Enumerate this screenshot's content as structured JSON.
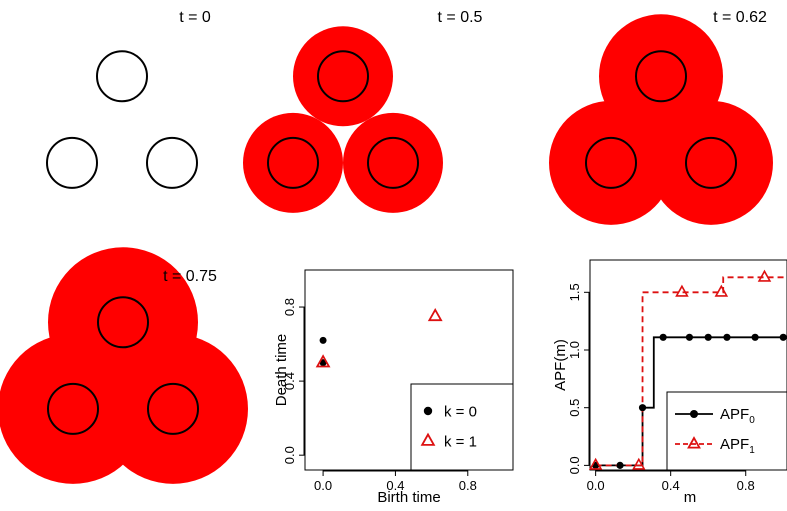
{
  "colors": {
    "fill": "#ff0000",
    "outline": "#000000",
    "k1": "#dd1111",
    "apf1": "#dd1111"
  },
  "panels": [
    {
      "label": "t = 0",
      "radius": 0
    },
    {
      "label": "t = 0.5",
      "radius": 0.5
    },
    {
      "label": "t = 0.62",
      "radius": 0.62
    },
    {
      "label": "t = 0.75",
      "radius": 0.75
    }
  ],
  "disk_centers": [
    [
      0,
      0.5774
    ],
    [
      -0.5,
      -0.2887
    ],
    [
      0.5,
      -0.2887
    ]
  ],
  "base_radius": 0.25,
  "chart_data": [
    {
      "type": "scatter",
      "xlabel": "Birth time",
      "ylabel": "Death time",
      "xlim": [
        -0.1,
        1.05
      ],
      "ylim": [
        -0.08,
        1.0
      ],
      "xticks": [
        "0.0",
        "0.4",
        "0.8"
      ],
      "yticks": [
        "0.0",
        "0.4",
        "0.8"
      ],
      "legend_position": "bottom-right",
      "series": [
        {
          "name": "k = 0",
          "marker": "dot",
          "points": [
            [
              0,
              0.5
            ],
            [
              0,
              0.62
            ]
          ]
        },
        {
          "name": "k = 1",
          "marker": "triangle",
          "points": [
            [
              0,
              0.5
            ],
            [
              0.62,
              0.75
            ]
          ]
        }
      ]
    },
    {
      "type": "line",
      "xlabel": "m",
      "ylabel": "APF(m)",
      "xlim": [
        -0.03,
        1.02
      ],
      "ylim": [
        -0.04,
        1.78
      ],
      "xticks": [
        "0.0",
        "0.4",
        "0.8"
      ],
      "yticks": [
        "0.0",
        "0.5",
        "1.0",
        "1.5"
      ],
      "legend_position": "bottom-right",
      "series": [
        {
          "name": "APF",
          "subscript": "0",
          "style": "solid",
          "marker": "dot",
          "step": [
            [
              0,
              0
            ],
            [
              0.25,
              0
            ],
            [
              0.25,
              0.5
            ],
            [
              0.31,
              0.5
            ],
            [
              0.31,
              1.11
            ],
            [
              1.02,
              1.11
            ]
          ],
          "markers": [
            [
              0,
              0
            ],
            [
              0.13,
              0
            ],
            [
              0.25,
              0.5
            ],
            [
              0.36,
              1.11
            ],
            [
              0.5,
              1.11
            ],
            [
              0.6,
              1.11
            ],
            [
              0.7,
              1.11
            ],
            [
              0.85,
              1.11
            ],
            [
              1.0,
              1.11
            ]
          ]
        },
        {
          "name": "APF",
          "subscript": "1",
          "style": "dashed",
          "marker": "triangle",
          "step": [
            [
              0,
              0
            ],
            [
              0.25,
              0
            ],
            [
              0.25,
              1.5
            ],
            [
              0.68,
              1.5
            ],
            [
              0.68,
              1.63
            ],
            [
              1.02,
              1.63
            ]
          ],
          "markers": [
            [
              0,
              0
            ],
            [
              0.23,
              0
            ],
            [
              0.46,
              1.5
            ],
            [
              0.67,
              1.5
            ],
            [
              0.9,
              1.63
            ]
          ]
        }
      ]
    }
  ]
}
